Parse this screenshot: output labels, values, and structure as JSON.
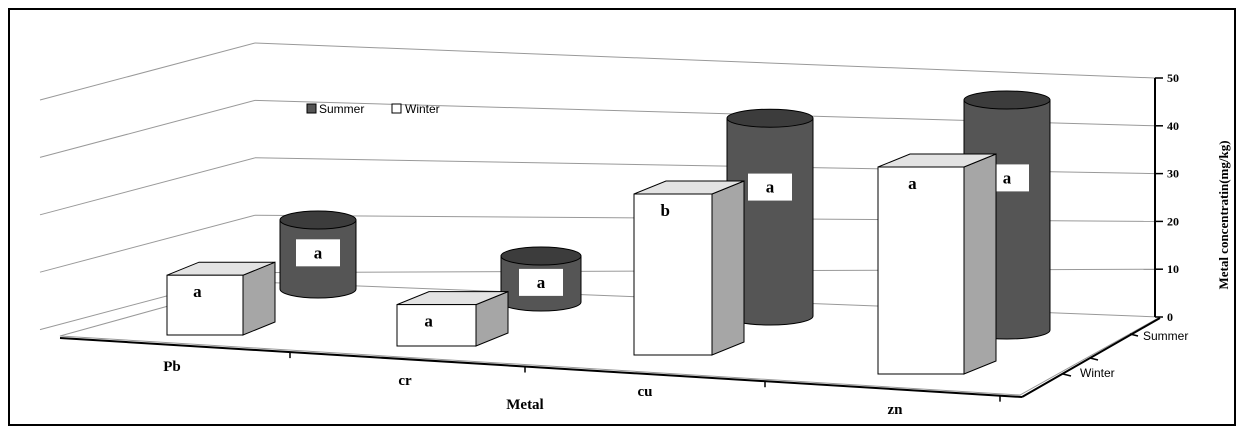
{
  "chart_data": {
    "type": "bar",
    "style": "3d-cylinder-and-box",
    "categories": [
      "Pb",
      "cr",
      "cu",
      "zn"
    ],
    "xlabel": "Metal",
    "ylabel": "Metal concentratin(mg/kg)",
    "ylim": [
      0,
      50
    ],
    "yticks": [
      "0",
      "10",
      "20",
      "30",
      "40",
      "50"
    ],
    "depth_labels": [
      "Summer",
      "Winter"
    ],
    "grid": true,
    "legend": {
      "position": "top-left",
      "entries": [
        "Summer",
        "Winter"
      ]
    },
    "series": [
      {
        "name": "Summer",
        "shape": "cylinder",
        "color": "#555555",
        "values": [
          15,
          10,
          43,
          50
        ],
        "labels": [
          "a",
          "a",
          "a",
          "a"
        ]
      },
      {
        "name": "Winter",
        "shape": "box",
        "color": "#ffffff",
        "values": [
          13,
          9,
          35,
          45
        ],
        "labels": [
          "a",
          "a",
          "b",
          "a"
        ]
      }
    ]
  }
}
